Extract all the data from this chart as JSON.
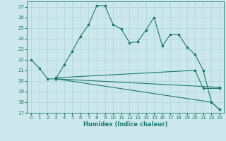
{
  "xlabel": "Humidex (Indice chaleur)",
  "bg_color": "#cce8ec",
  "line_color": "#1a7a6e",
  "grid_color": "#aed4d8",
  "xlim": [
    -0.5,
    23.5
  ],
  "ylim": [
    17,
    27.5
  ],
  "yticks": [
    17,
    18,
    19,
    20,
    21,
    22,
    23,
    24,
    25,
    26,
    27
  ],
  "xticks": [
    0,
    1,
    2,
    3,
    4,
    5,
    6,
    7,
    8,
    9,
    10,
    11,
    12,
    13,
    14,
    15,
    16,
    17,
    18,
    19,
    20,
    21,
    22,
    23
  ],
  "line1_x": [
    0,
    1,
    2,
    3,
    4,
    5,
    6,
    7,
    8,
    9,
    10,
    11,
    12,
    13,
    14,
    15,
    16,
    17,
    18,
    19,
    20,
    21,
    22,
    23
  ],
  "line1_y": [
    22.0,
    21.2,
    20.2,
    20.2,
    21.5,
    22.8,
    24.2,
    25.3,
    27.1,
    27.1,
    25.3,
    24.9,
    23.6,
    23.7,
    24.8,
    26.0,
    23.3,
    24.4,
    24.4,
    23.2,
    22.5,
    21.0,
    18.0,
    17.3
  ],
  "line2_x": [
    3,
    22,
    23
  ],
  "line2_y": [
    20.2,
    18.0,
    17.3
  ],
  "line3_x": [
    3,
    23
  ],
  "line3_y": [
    20.2,
    19.4
  ],
  "line4_x": [
    3,
    20,
    21,
    23
  ],
  "line4_y": [
    20.3,
    21.0,
    19.3,
    19.3
  ],
  "xlabel_fontsize": 6.0,
  "tick_fontsize": 5.0,
  "lw": 0.8,
  "ms": 2.0
}
